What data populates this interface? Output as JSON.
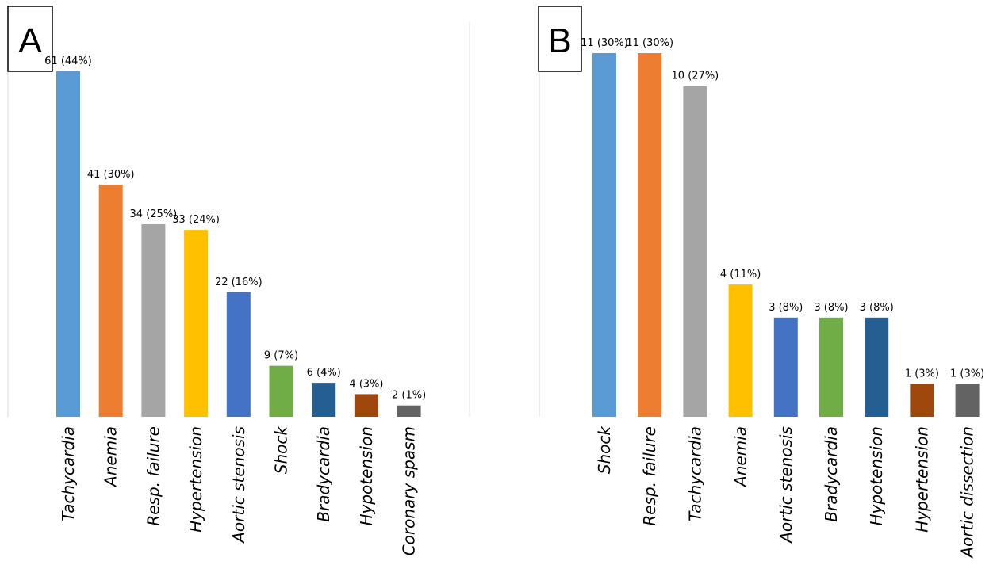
{
  "chart_data": [
    {
      "type": "bar",
      "panel_label": "A",
      "categories": [
        "Tachycardia",
        "Anemia",
        "Resp. failure",
        "Hypertension",
        "Aortic stenosis",
        "Shock",
        "Bradycardia",
        "Hypotension",
        "Coronary spasm"
      ],
      "values": [
        61,
        41,
        34,
        33,
        22,
        9,
        6,
        4,
        2
      ],
      "data_labels": [
        "61 (44%)",
        "41 (30%)",
        "34 (25%)",
        "33 (24%)",
        "22 (16%)",
        "9 (7%)",
        "6 (4%)",
        "4 (3%)",
        "2 (1%)"
      ],
      "colors": [
        "#5b9bd5",
        "#ed7d31",
        "#a5a5a5",
        "#ffc000",
        "#4472c4",
        "#70ad47",
        "#255e91",
        "#9e480e",
        "#636363"
      ],
      "ylim": [
        0,
        61
      ],
      "grid": false,
      "legend": "none"
    },
    {
      "type": "bar",
      "panel_label": "B",
      "categories": [
        "Shock",
        "Resp. failure",
        "Tachycardia",
        "Anemia",
        "Aortic stenosis",
        "Bradycardia",
        "Hypotension",
        "Hypertension",
        "Aortic dissection"
      ],
      "values": [
        11,
        11,
        10,
        4,
        3,
        3,
        3,
        1,
        1
      ],
      "data_labels": [
        "11 (30%)",
        "11 (30%)",
        "10 (27%)",
        "4 (11%)",
        "3 (8%)",
        "3 (8%)",
        "3 (8%)",
        "1 (3%)",
        "1 (3%)"
      ],
      "colors": [
        "#5b9bd5",
        "#ed7d31",
        "#a5a5a5",
        "#ffc000",
        "#4472c4",
        "#70ad47",
        "#255e91",
        "#9e480e",
        "#636363"
      ],
      "ylim": [
        0,
        11
      ],
      "grid": false,
      "legend": "none"
    }
  ]
}
